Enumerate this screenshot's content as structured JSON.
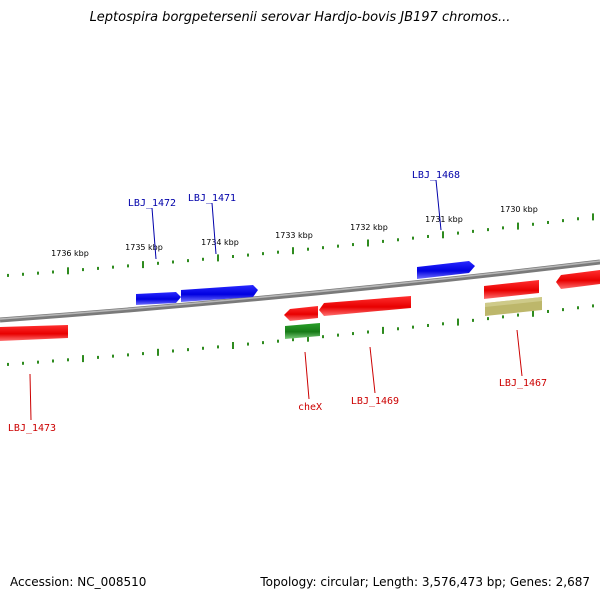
{
  "title": "Leptospira borgpetersenii serovar Hardjo-bovis JB197 chromos...",
  "footer": {
    "accession": "Accession: NC_008510",
    "summary": "Topology: circular; Length: 3,576,473 bp; Genes: 2,687"
  },
  "colors": {
    "backbone": "#8a8a8a",
    "ticks": "#2e8b1e",
    "gene_red": "#ee0000",
    "gene_blue": "#0000ee",
    "gene_green": "#1e8a1e",
    "gene_khaki": "#bdb76b",
    "label_red": "#cc0000",
    "label_blue": "#0000aa"
  },
  "kbp_labels": [
    "1736 kbp",
    "1735 kbp",
    "1734 kbp",
    "1733 kbp",
    "1732 kbp",
    "1731 kbp",
    "1730 kbp"
  ],
  "gene_labels": {
    "lbj_1472": "LBJ_1472",
    "lbj_1471": "LBJ_1471",
    "lbj_1468": "LBJ_1468",
    "chex": "cheX",
    "lbj_1469": "LBJ_1469",
    "lbj_1467": "LBJ_1467",
    "lbj_1473": "LBJ_1473"
  }
}
